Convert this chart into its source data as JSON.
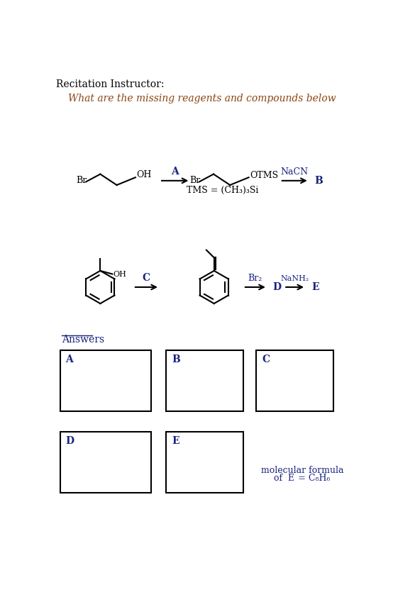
{
  "title_text": "Recitation Instructor:",
  "subtitle_text": "What are the missing reagents and compounds below",
  "bg_color": "#ffffff",
  "text_color": "#000000",
  "dark_blue": "#1a237e",
  "orange_brown": "#8B4513",
  "answers_label": "Answers",
  "mol_formula_line1": "molecular formula",
  "mol_formula_line2": "of E = C₈H₆",
  "TMS_def": "TMS = (CH₃)₃Si",
  "reagent_A": "A",
  "reagent_NaCN": "NaCN",
  "product_B": "B",
  "reagent_C": "C",
  "reagent_Br2": "Br₂",
  "product_D": "D",
  "reagent_NaNH2": "NaNH₂",
  "product_E": "E"
}
